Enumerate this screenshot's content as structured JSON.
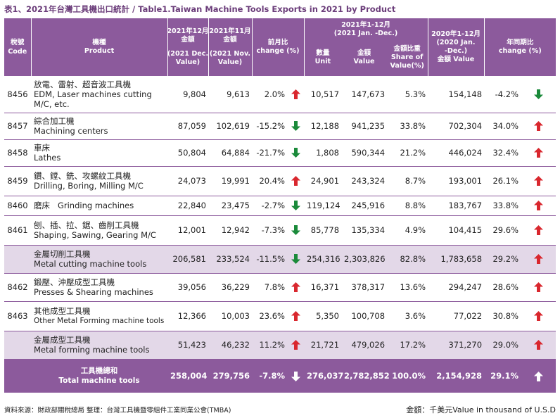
{
  "title": "表1、2021年台灣工具機出口統計 / Table1.Taiwan Machine Tools Exports  in 2021 by Product",
  "header": {
    "code": [
      "稅號",
      "Code"
    ],
    "product": [
      "機種",
      "Product"
    ],
    "dec": [
      "2021年12月",
      "金額",
      "(2021 Dec.",
      "Value)"
    ],
    "nov": [
      "2021年11月",
      "金額",
      "(2021 Nov.",
      "Value)"
    ],
    "mom": [
      "前月比",
      "change (%)"
    ],
    "ytd_group": [
      "2021年1-12月",
      "(2021 Jan. -Dec.)"
    ],
    "qty": [
      "數量",
      "Unit"
    ],
    "val": [
      "金額",
      "Value"
    ],
    "share": [
      "金額比重",
      "Share of",
      "Value(%)"
    ],
    "prev": [
      "2020年1-12月",
      "(2020 Jan.",
      "-Dec.)",
      "金額 Value"
    ],
    "yoy": [
      "年同期比",
      "change (%)"
    ]
  },
  "rows": [
    {
      "type": "item",
      "code": "8456",
      "zh": "放電、雷射、超音波工具機",
      "en": [
        "EDM, Laser machines cutting",
        "M/C, etc."
      ],
      "dec": "9,804",
      "nov": "9,613",
      "mom": "2.0%",
      "mom_dir": "up",
      "qty": "10,517",
      "val": "147,673",
      "share": "5.3%",
      "prev": "154,148",
      "yoy": "-4.2%",
      "yoy_dir": "down"
    },
    {
      "type": "item",
      "code": "8457",
      "zh": "綜合加工機",
      "en": [
        "Machining centers"
      ],
      "dec": "87,059",
      "nov": "102,619",
      "mom": "-15.2%",
      "mom_dir": "down",
      "qty": "12,188",
      "val": "941,235",
      "share": "33.8%",
      "prev": "702,304",
      "yoy": "34.0%",
      "yoy_dir": "up"
    },
    {
      "type": "item",
      "code": "8458",
      "zh": "車床",
      "en": [
        "Lathes"
      ],
      "dec": "50,804",
      "nov": "64,884",
      "mom": "-21.7%",
      "mom_dir": "down",
      "qty": "1,808",
      "val": "590,344",
      "share": "21.2%",
      "prev": "446,024",
      "yoy": "32.4%",
      "yoy_dir": "up"
    },
    {
      "type": "item",
      "code": "8459",
      "zh": "鑽、鏜、銑、攻螺紋工具機",
      "en": [
        "Drilling, Boring, Milling M/C"
      ],
      "dec": "24,073",
      "nov": "19,991",
      "mom": "20.4%",
      "mom_dir": "up",
      "qty": "24,901",
      "val": "243,324",
      "share": "8.7%",
      "prev": "193,001",
      "yoy": "26.1%",
      "yoy_dir": "up"
    },
    {
      "type": "item-inline",
      "code": "8460",
      "zh": "磨床",
      "en": [
        "Grinding machines"
      ],
      "dec": "22,840",
      "nov": "23,475",
      "mom": "-2.7%",
      "mom_dir": "down",
      "qty": "119,124",
      "val": "245,916",
      "share": "8.8%",
      "prev": "183,767",
      "yoy": "33.8%",
      "yoy_dir": "up"
    },
    {
      "type": "item",
      "code": "8461",
      "zh": "刨、插、拉、鋸、齒削工具機",
      "en": [
        "Shaping, Sawing, Gearing M/C"
      ],
      "dec": "12,001",
      "nov": "12,942",
      "mom": "-7.3%",
      "mom_dir": "down",
      "qty": "85,778",
      "val": "135,334",
      "share": "4.9%",
      "prev": "104,415",
      "yoy": "29.6%",
      "yoy_dir": "up"
    },
    {
      "type": "sub",
      "code": "",
      "zh": "金屬切削工具機",
      "en": [
        "Metal cutting machine tools"
      ],
      "dec": "206,581",
      "nov": "233,524",
      "mom": "-11.5%",
      "mom_dir": "down",
      "qty": "254,316",
      "val": "2,303,826",
      "share": "82.8%",
      "prev": "1,783,658",
      "yoy": "29.2%",
      "yoy_dir": "up"
    },
    {
      "type": "item",
      "code": "8462",
      "zh": "鍛壓、沖壓成型工具機",
      "en": [
        "Presses & Shearing machines"
      ],
      "dec": "39,056",
      "nov": "36,229",
      "mom": "7.8%",
      "mom_dir": "up",
      "qty": "16,371",
      "val": "378,317",
      "share": "13.6%",
      "prev": "294,247",
      "yoy": "28.6%",
      "yoy_dir": "up"
    },
    {
      "type": "item small",
      "code": "8463",
      "zh": "其他成型工具機",
      "en": [
        "Other Metal Forming machine tools"
      ],
      "dec": "12,366",
      "nov": "10,003",
      "mom": "23.6%",
      "mom_dir": "up",
      "qty": "5,350",
      "val": "100,708",
      "share": "3.6%",
      "prev": "77,022",
      "yoy": "30.8%",
      "yoy_dir": "up"
    },
    {
      "type": "sub",
      "code": "",
      "zh": "金屬成型工具機",
      "en": [
        "Metal forming machine tools"
      ],
      "dec": "51,423",
      "nov": "46,232",
      "mom": "11.2%",
      "mom_dir": "up",
      "qty": "21,721",
      "val": "479,026",
      "share": "17.2%",
      "prev": "371,270",
      "yoy": "29.0%",
      "yoy_dir": "up"
    },
    {
      "type": "tot",
      "code": "",
      "zh": "工具機總和",
      "en": [
        "Total machine tools"
      ],
      "dec": "258,004",
      "nov": "279,756",
      "mom": "-7.8%",
      "mom_dir": "down",
      "qty": "276,037",
      "val": "2,782,852",
      "share": "100.0%",
      "prev": "2,154,928",
      "yoy": "29.1%",
      "yoy_dir": "up"
    }
  ],
  "footer": {
    "source": "資料來源：財政部關稅總局  整理：台灣工具機暨零組件工業同業公會(TMBA)",
    "unit": "金額：千美元Value in thousand of U.S.D"
  },
  "colors": {
    "header": "#8c5a9c",
    "subtotal": "#e3d8e8",
    "up": "#d9272e",
    "down": "#1a8a3a",
    "title": "#6b3d7a"
  }
}
